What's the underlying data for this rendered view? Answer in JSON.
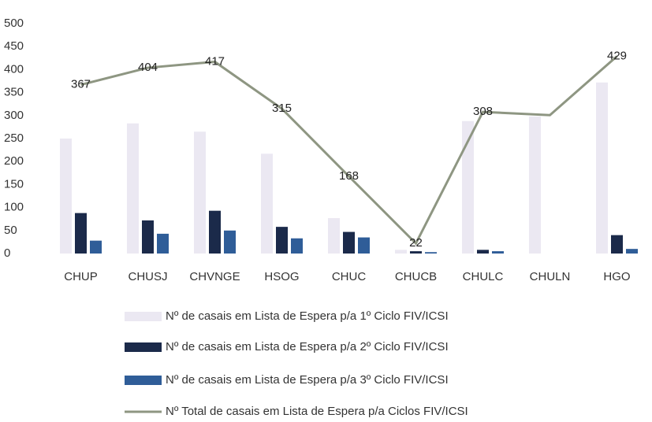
{
  "chart_data": {
    "type": "bar+line",
    "categories": [
      "CHUP",
      "CHUSJ",
      "CHVNGE",
      "HSOG",
      "CHUC",
      "CHUCB",
      "CHULC",
      "CHULN",
      "HGO"
    ],
    "series": [
      {
        "name": "Nº de casais em Lista de Espera p/a 1º Ciclo  FIV/ICSI",
        "color": "#ebe8f2",
        "type": "bar",
        "values": [
          250,
          283,
          265,
          217,
          77,
          8,
          288,
          298,
          372
        ]
      },
      {
        "name": "Nº de casais em Lista de Espera p/a 2º Ciclo FIV/ICSI",
        "color": "#1b2a4a",
        "type": "bar",
        "values": [
          88,
          72,
          93,
          58,
          47,
          5,
          8,
          0,
          40
        ]
      },
      {
        "name": "Nº de casais em Lista de Espera p/a 3º Ciclo FIV/ICSI",
        "color": "#2f5d98",
        "type": "bar",
        "values": [
          28,
          43,
          50,
          33,
          35,
          3,
          5,
          0,
          10
        ]
      },
      {
        "name": "Nº Total de casais em Lista de Espera p/a Ciclos  FIV/ICSI",
        "color": "#8e9682",
        "type": "line",
        "values": [
          367,
          404,
          417,
          315,
          168,
          22,
          308,
          301,
          429
        ],
        "value_labels": [
          "367",
          "404",
          "417",
          "315",
          "168",
          "22",
          "308",
          null,
          "429"
        ]
      }
    ],
    "ylim": [
      0,
      500
    ],
    "yticks": [
      0,
      50,
      100,
      150,
      200,
      250,
      300,
      350,
      400,
      450,
      500
    ],
    "grid": false
  }
}
